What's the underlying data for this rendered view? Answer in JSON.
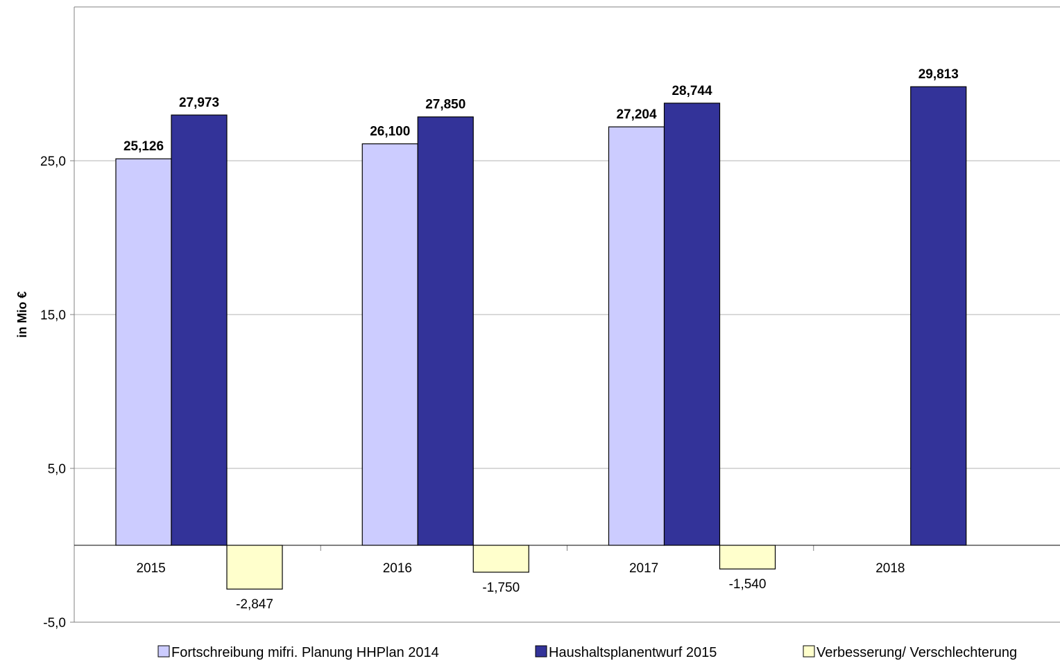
{
  "chart_data": {
    "type": "bar",
    "title": "",
    "xlabel": "",
    "ylabel": "in Mio €",
    "ylim": [
      -5,
      35
    ],
    "yticks": [
      {
        "value": -5,
        "label": "-5,0"
      },
      {
        "value": 5,
        "label": "5,0"
      },
      {
        "value": 15,
        "label": "15,0"
      },
      {
        "value": 25,
        "label": "25,0"
      }
    ],
    "grid": true,
    "legend_position": "bottom",
    "categories": [
      "2015",
      "2016",
      "2017",
      "2018"
    ],
    "series": [
      {
        "name": "Fortschreibung mifri. Planung HHPlan 2014",
        "color": "#ccccff",
        "values": [
          25.126,
          26.1,
          27.204,
          null
        ],
        "labels": [
          "25,126",
          "26,100",
          "27,204",
          ""
        ],
        "label_bold": true
      },
      {
        "name": "Haushaltsplanentwurf 2015",
        "color": "#333399",
        "values": [
          27.973,
          27.85,
          28.744,
          29.813
        ],
        "labels": [
          "27,973",
          "27,850",
          "28,744",
          "29,813"
        ],
        "label_bold": true
      },
      {
        "name": "Verbesserung/ Verschlechterung",
        "color": "#ffffcc",
        "values": [
          -2.847,
          -1.75,
          -1.54,
          null
        ],
        "labels": [
          "-2,847",
          "-1,750",
          "-1,540",
          ""
        ],
        "label_bold": false
      }
    ]
  }
}
